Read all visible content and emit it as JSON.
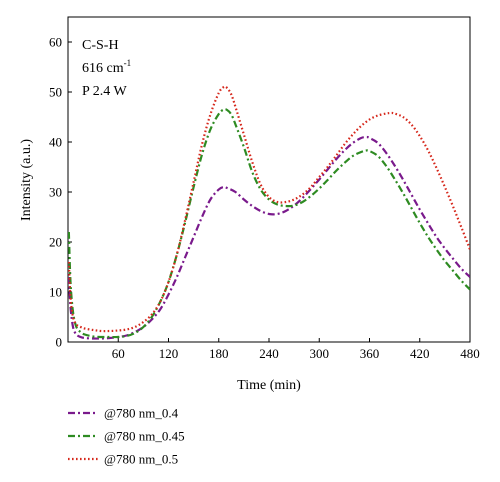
{
  "chart_data": {
    "type": "line",
    "xlabel": "Time (min)",
    "ylabel": "Intensity (a.u.)",
    "xlim": [
      0,
      480
    ],
    "ylim": [
      0,
      65
    ],
    "xticks": [
      60,
      120,
      180,
      240,
      300,
      360,
      420,
      480
    ],
    "yticks": [
      0,
      10,
      20,
      30,
      40,
      50,
      60
    ],
    "grid": false,
    "legend_position": "below-left",
    "annotations": {
      "line1": "C-S-H",
      "line2_value": "616 cm",
      "line2_sup": "-1",
      "line3": "P 2.4 W"
    },
    "series": [
      {
        "name": "@780 nm_0.4",
        "color": "#7a1a8c",
        "dash": "dashdot",
        "x": [
          1,
          3,
          6,
          10,
          15,
          20,
          30,
          40,
          50,
          60,
          70,
          80,
          90,
          100,
          110,
          120,
          130,
          140,
          150,
          160,
          170,
          180,
          186,
          190,
          200,
          210,
          220,
          230,
          240,
          250,
          260,
          270,
          280,
          290,
          300,
          310,
          320,
          330,
          340,
          350,
          356,
          360,
          370,
          380,
          390,
          400,
          410,
          420,
          430,
          440,
          450,
          460,
          470,
          480
        ],
        "y": [
          13,
          7,
          3,
          1.5,
          1,
          0.8,
          0.7,
          0.7,
          0.8,
          1,
          1.3,
          2,
          3,
          4.5,
          6.5,
          9.5,
          13,
          17,
          21,
          25,
          28.5,
          30.5,
          31,
          30.8,
          30,
          28.5,
          27.2,
          26.2,
          25.6,
          25.6,
          26.2,
          27.3,
          28.8,
          30.6,
          32.5,
          34.5,
          36.5,
          38.3,
          39.8,
          40.8,
          41,
          40.8,
          39.8,
          37.8,
          35.3,
          32.5,
          29.5,
          26.5,
          23.7,
          21,
          18.7,
          16.6,
          14.6,
          13
        ]
      },
      {
        "name": "@780 nm_0.45",
        "color": "#2e8b22",
        "dash": "dashdot",
        "x": [
          1,
          3,
          6,
          10,
          15,
          20,
          30,
          40,
          50,
          60,
          70,
          80,
          90,
          100,
          110,
          120,
          130,
          140,
          150,
          160,
          170,
          180,
          186,
          190,
          195,
          200,
          210,
          220,
          230,
          240,
          250,
          260,
          270,
          280,
          290,
          300,
          310,
          320,
          330,
          340,
          350,
          356,
          360,
          370,
          380,
          390,
          400,
          410,
          420,
          430,
          440,
          450,
          460,
          470,
          480
        ],
        "y": [
          22,
          12,
          6,
          3,
          2,
          1.5,
          1.1,
          1,
          1,
          1,
          1.2,
          1.8,
          3,
          5,
          8,
          12,
          17.5,
          24,
          31,
          37.5,
          42.5,
          45.6,
          46.5,
          46.4,
          45.5,
          43.5,
          39,
          34,
          30.5,
          28.5,
          27.5,
          27.2,
          27.3,
          28,
          29.2,
          30.7,
          32.4,
          34.2,
          35.8,
          37.2,
          38,
          38.3,
          38.2,
          37.2,
          35.2,
          32.6,
          29.8,
          26.8,
          23.8,
          21,
          18.5,
          16.2,
          14.2,
          12.2,
          10.5
        ]
      },
      {
        "name": "@780 nm_0.5",
        "color": "#d6281c",
        "dash": "dotted",
        "x": [
          1,
          3,
          6,
          10,
          15,
          20,
          30,
          40,
          50,
          60,
          70,
          80,
          90,
          100,
          110,
          120,
          130,
          140,
          150,
          160,
          170,
          180,
          186,
          190,
          195,
          200,
          210,
          220,
          230,
          240,
          250,
          260,
          270,
          280,
          290,
          300,
          310,
          320,
          330,
          340,
          350,
          360,
          370,
          380,
          386,
          390,
          400,
          410,
          420,
          430,
          440,
          450,
          460,
          470,
          480
        ],
        "y": [
          16,
          9,
          5,
          3.5,
          3,
          2.7,
          2.4,
          2.2,
          2.2,
          2.3,
          2.5,
          3,
          4,
          5.5,
          8,
          12,
          17.5,
          24.5,
          32,
          39.5,
          45.5,
          49.8,
          51,
          50.8,
          49.5,
          47,
          41.5,
          36,
          31.5,
          29,
          28,
          28,
          28.5,
          29.5,
          31,
          33,
          35,
          37.2,
          39.5,
          41.5,
          43.2,
          44.5,
          45.3,
          45.7,
          45.8,
          45.7,
          45,
          43.5,
          41.2,
          38.3,
          34.8,
          31,
          27,
          22.8,
          18.5
        ]
      }
    ]
  }
}
